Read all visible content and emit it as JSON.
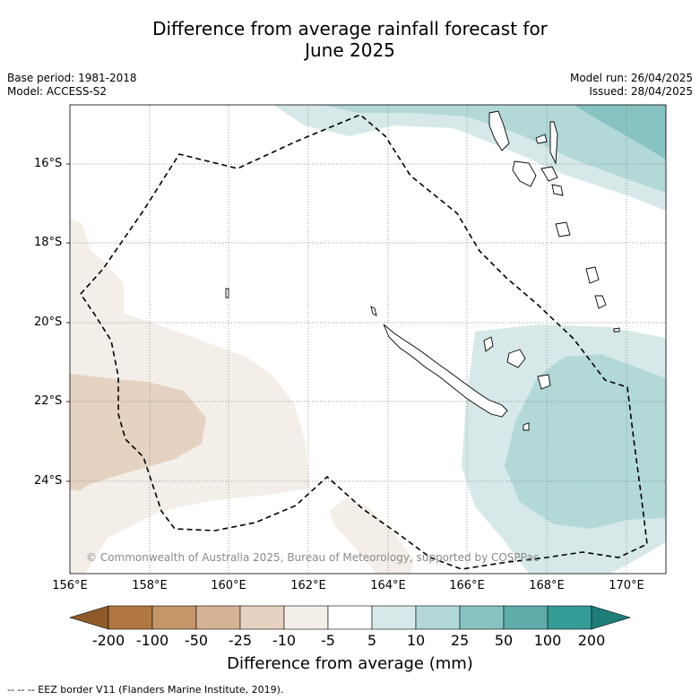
{
  "title_line1": "Difference from average rainfall forecast for",
  "title_line2": "June 2025",
  "base_period": "Base period: 1981-2018",
  "model": "Model: ACCESS-S2",
  "model_run": "Model run: 26/04/2025",
  "issued": "Issued: 28/04/2025",
  "copyright": "© Commonwealth of Australia 2025, Bureau of Meteorology, supported by COSPPac",
  "lat_labels": [
    "16°S",
    "18°S",
    "20°S",
    "22°S",
    "24°S"
  ],
  "lon_labels": [
    "156°E",
    "158°E",
    "160°E",
    "162°E",
    "164°E",
    "166°E",
    "168°E",
    "170°E"
  ],
  "colorbar": {
    "labels": [
      "-200",
      "-100",
      "-50",
      "-25",
      "-10",
      "-5",
      "5",
      "10",
      "25",
      "50",
      "100",
      "200"
    ],
    "colors": [
      "#b07840",
      "#c59668",
      "#d6b394",
      "#e6d2c0",
      "#f3efe8",
      "#ffffff",
      "#d6e9e8",
      "#b2d9d8",
      "#87c3c2",
      "#5eadab",
      "#359b97"
    ],
    "under_color": "#8f5a2a",
    "over_color": "#1e7d79",
    "title": "Difference from average (mm)"
  },
  "footer": "--  --  -- EEZ border V11 (Flanders Marine Institute, 2019).",
  "map_extent": {
    "lon": [
      156,
      171
    ],
    "lat": [
      -26.3,
      -14.5
    ]
  }
}
